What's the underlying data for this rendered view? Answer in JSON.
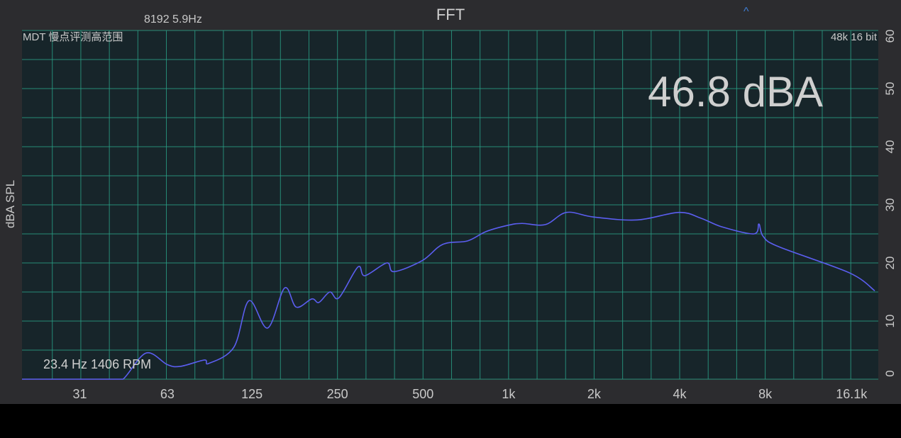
{
  "header": {
    "title": "FFT",
    "fft_info": "8192  5.9Hz",
    "collapse_icon": "caret-up-icon",
    "profile_label": "MDT 慢点评测高范围",
    "format_label": "48k 16 bit"
  },
  "readout": {
    "level": "46.8 dBA",
    "peak": "23.4 Hz 1406 RPM"
  },
  "colors": {
    "background": "#2c2c2f",
    "plot_background": "#17252a",
    "grid": "#2a9c84",
    "curve": "#5b5ef0",
    "text": "#c9c9c9"
  },
  "chart_data": {
    "type": "line",
    "title": "FFT",
    "xlabel": "",
    "ylabel": "dBA SPL",
    "xscale": "log",
    "xlim": [
      19.4,
      20000
    ],
    "ylim": [
      0,
      60
    ],
    "grid": true,
    "x_ticks": [
      31,
      63,
      125,
      250,
      500,
      1000,
      2000,
      4000,
      8000,
      16100
    ],
    "x_tick_labels": [
      "31",
      "63",
      "125",
      "250",
      "500",
      "1k",
      "2k",
      "4k",
      "8k",
      "16.1k"
    ],
    "y_ticks": [
      0,
      10,
      20,
      30,
      40,
      50,
      60
    ],
    "y_tick_labels": [
      "0",
      "10",
      "20",
      "30",
      "40",
      "50",
      "60"
    ],
    "series": [
      {
        "x": [
          19.4,
          30,
          40,
          44,
          53,
          63,
          70,
          85,
          88,
          108,
          122,
          142,
          163,
          179,
          203,
          215,
          235,
          253,
          295,
          312,
          373,
          395,
          497,
          587,
          718,
          833,
          1000,
          1115,
          1347,
          1600,
          1989,
          2836,
          3977,
          4750,
          5640,
          7300,
          7600,
          7860,
          8920,
          15820,
          19440
        ],
        "y": [
          0,
          0,
          0,
          0,
          4.5,
          2.5,
          2.2,
          3.3,
          2.7,
          5.5,
          13.5,
          8.8,
          15.7,
          12.4,
          13.8,
          13.2,
          15,
          14,
          19.3,
          17.8,
          20,
          18.5,
          20.4,
          23.2,
          23.8,
          25.4,
          26.5,
          26.8,
          26.6,
          28.7,
          27.9,
          27.4,
          28.7,
          27.7,
          26.2,
          25,
          26.7,
          24.6,
          22.8,
          18.3,
          15.2
        ]
      }
    ]
  }
}
